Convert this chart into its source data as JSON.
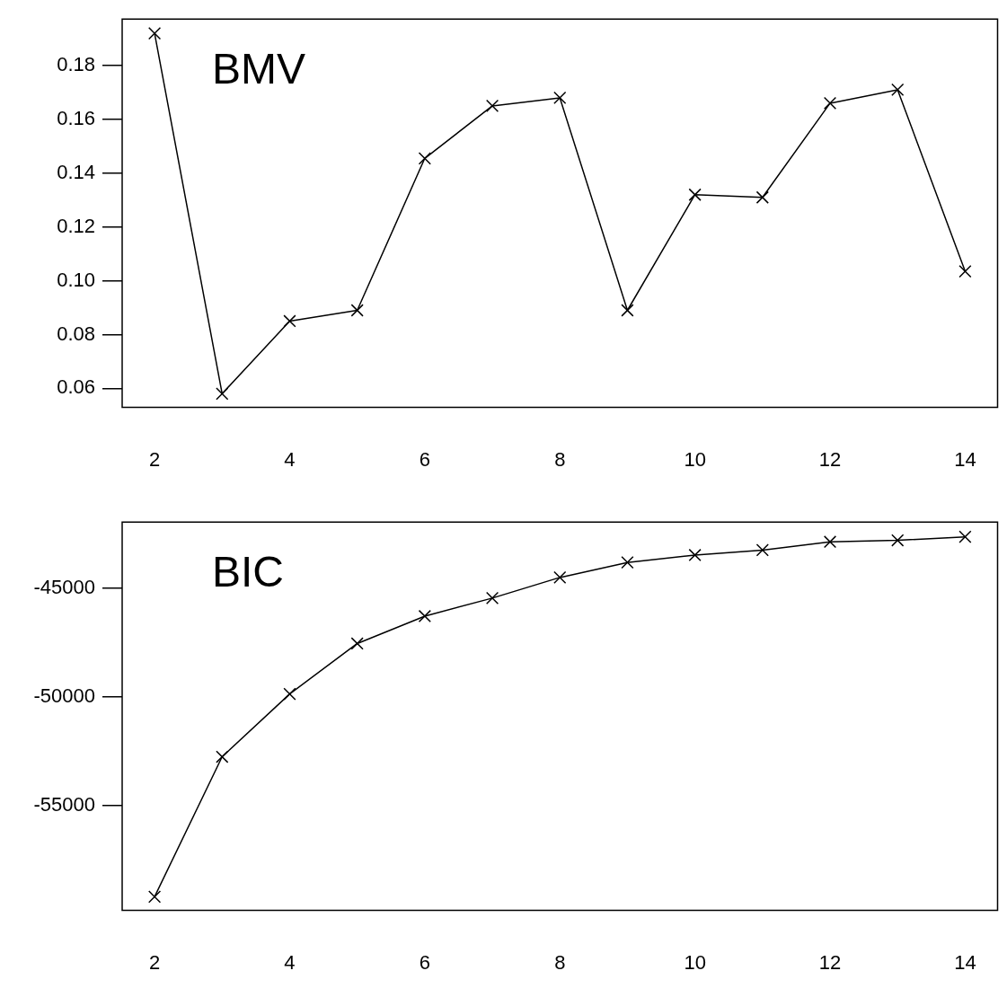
{
  "chart_data": [
    {
      "type": "line",
      "annotations": [
        "BMV"
      ],
      "x": [
        2,
        3,
        4,
        5,
        6,
        7,
        8,
        9,
        10,
        11,
        12,
        13,
        14
      ],
      "series": [
        {
          "color": "#000000",
          "values": [
            0.192,
            0.058,
            0.085,
            0.089,
            0.1455,
            0.165,
            0.168,
            0.089,
            0.132,
            0.131,
            0.166,
            0.171,
            0.1035
          ]
        }
      ],
      "xlim": [
        1.52,
        14.48
      ],
      "xticks": [
        2,
        4,
        6,
        8,
        10,
        12,
        14
      ],
      "ylim": [
        0.0529,
        0.1973
      ],
      "yticks": [
        {
          "value": 0.06,
          "label": "0.06"
        },
        {
          "value": 0.08,
          "label": "0.08"
        },
        {
          "value": 0.1,
          "label": "0.10"
        },
        {
          "value": 0.12,
          "label": "0.12"
        },
        {
          "value": 0.14,
          "label": "0.14"
        },
        {
          "value": 0.16,
          "label": "0.16"
        },
        {
          "value": 0.18,
          "label": "0.18"
        }
      ],
      "grid": false,
      "legend": false,
      "marker": "cross",
      "line_style": "solid"
    },
    {
      "type": "line",
      "annotations": [
        "BIC"
      ],
      "x": [
        2,
        3,
        4,
        5,
        6,
        7,
        8,
        9,
        10,
        11,
        12,
        13,
        14
      ],
      "series": [
        {
          "color": "#000000",
          "values": [
            -59200,
            -52760,
            -49870,
            -47550,
            -46290,
            -45460,
            -44510,
            -43820,
            -43480,
            -43250,
            -42870,
            -42800,
            -42640
          ]
        }
      ],
      "xlim": [
        1.52,
        14.48
      ],
      "xticks": [
        2,
        4,
        6,
        8,
        10,
        12,
        14
      ],
      "ylim": [
        -59830,
        -41960
      ],
      "yticks": [
        -55000,
        -50000,
        -45000
      ],
      "grid": false,
      "legend": false,
      "marker": "cross",
      "line_style": "solid"
    }
  ]
}
